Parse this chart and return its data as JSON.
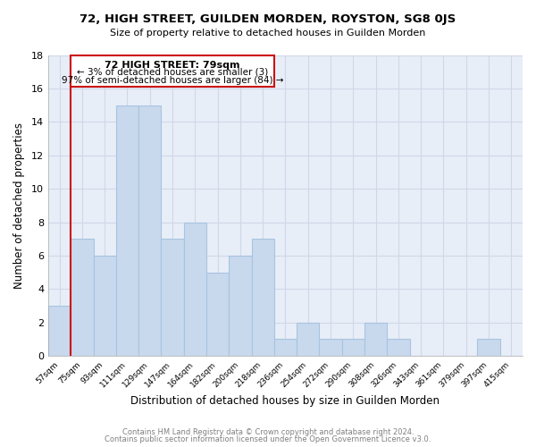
{
  "title": "72, HIGH STREET, GUILDEN MORDEN, ROYSTON, SG8 0JS",
  "subtitle": "Size of property relative to detached houses in Guilden Morden",
  "xlabel": "Distribution of detached houses by size in Guilden Morden",
  "ylabel": "Number of detached properties",
  "bar_color": "#c8d9ed",
  "bar_edge_color": "#a8c4e0",
  "highlight_color": "#cc1111",
  "annotation_line1": "72 HIGH STREET: 79sqm",
  "annotation_line2": "← 3% of detached houses are smaller (3)",
  "annotation_line3": "97% of semi-detached houses are larger (84) →",
  "footer_line1": "Contains HM Land Registry data © Crown copyright and database right 2024.",
  "footer_line2": "Contains public sector information licensed under the Open Government Licence v3.0.",
  "bins": [
    "57sqm",
    "75sqm",
    "93sqm",
    "111sqm",
    "129sqm",
    "147sqm",
    "164sqm",
    "182sqm",
    "200sqm",
    "218sqm",
    "236sqm",
    "254sqm",
    "272sqm",
    "290sqm",
    "308sqm",
    "326sqm",
    "343sqm",
    "361sqm",
    "379sqm",
    "397sqm",
    "415sqm"
  ],
  "values": [
    3,
    7,
    6,
    15,
    15,
    7,
    8,
    5,
    6,
    7,
    1,
    2,
    1,
    1,
    2,
    1,
    0,
    0,
    0,
    1,
    0
  ],
  "highlight_after_index": 0,
  "ylim": [
    0,
    18
  ],
  "yticks": [
    0,
    2,
    4,
    6,
    8,
    10,
    12,
    14,
    16,
    18
  ],
  "background_color": "#ffffff",
  "grid_color": "#d0d8e8"
}
